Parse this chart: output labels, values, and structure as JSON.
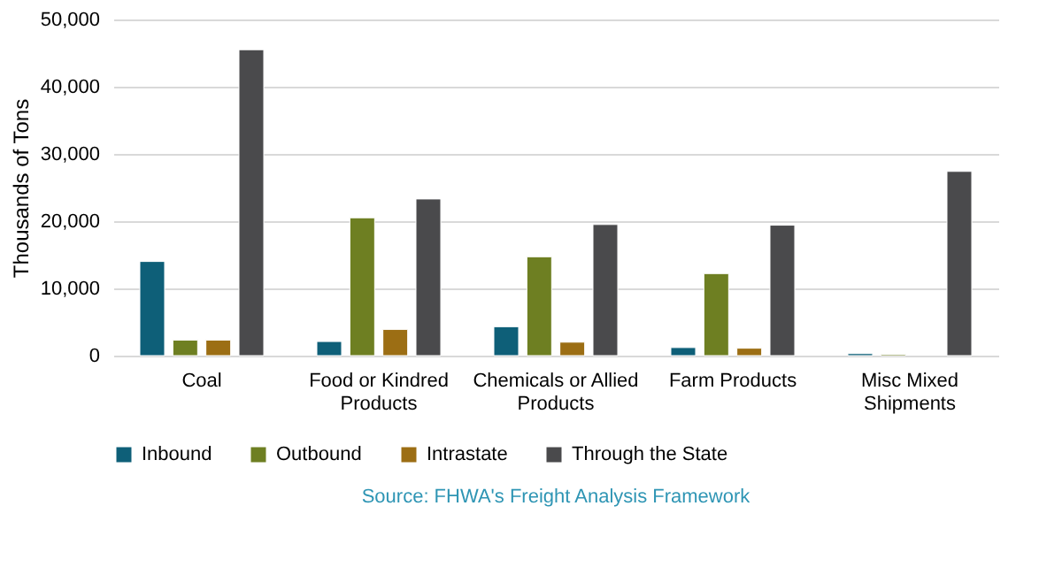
{
  "chart_data": {
    "type": "bar",
    "ylabel": "Thousands of Tons",
    "categories": [
      "Coal",
      "Food or Kindred Products",
      "Chemicals or Allied Products",
      "Farm Products",
      "Misc Mixed Shipments"
    ],
    "series": [
      {
        "name": "Inbound",
        "color": "#0e5f78",
        "values": [
          14000,
          2100,
          4300,
          1200,
          300
        ]
      },
      {
        "name": "Outbound",
        "color": "#6e7f22",
        "values": [
          2300,
          20500,
          14700,
          12200,
          200
        ]
      },
      {
        "name": "Intrastate",
        "color": "#9c6e14",
        "values": [
          2300,
          3900,
          2000,
          1100,
          null
        ]
      },
      {
        "name": "Through the State",
        "color": "#4a4a4c",
        "values": [
          45500,
          23300,
          19500,
          19400,
          27400
        ]
      }
    ],
    "ylim": [
      0,
      50000
    ],
    "yticks": [
      0,
      {
        "value": 10000,
        "label": "10,000"
      },
      {
        "value": 20000,
        "label": "20,000"
      },
      {
        "value": 30000,
        "label": "30,000"
      },
      {
        "value": 40000,
        "label": "40,000"
      },
      {
        "value": 50000,
        "label": "50,000"
      }
    ],
    "grid": "y",
    "legend": "bottom",
    "annotations": [
      "Source: FHWA's Freight Analysis Framework"
    ]
  }
}
